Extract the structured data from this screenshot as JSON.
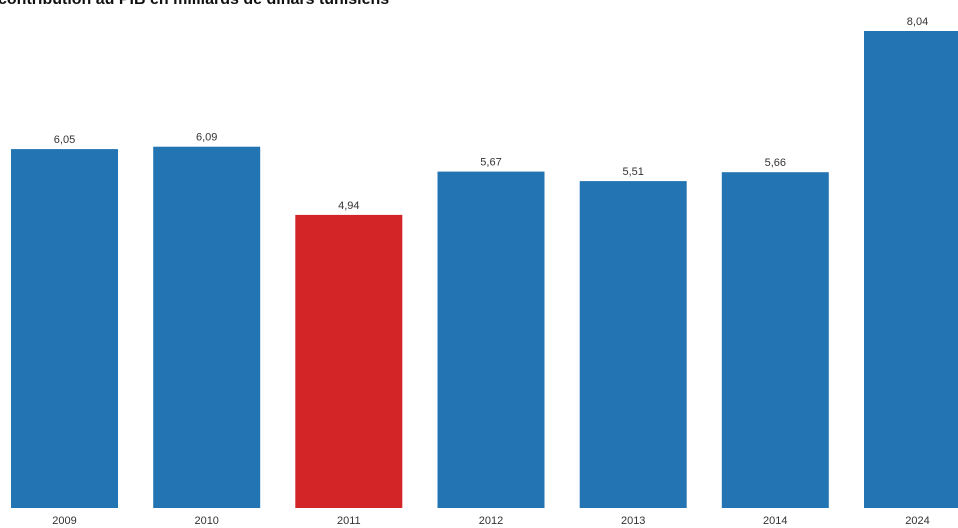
{
  "chart_data": {
    "type": "bar",
    "title": "contribution au PIB en milliards de dinars tunisiens",
    "categories": [
      "2009",
      "2010",
      "2011",
      "2012",
      "2013",
      "2014",
      "2024"
    ],
    "values": [
      6.05,
      6.09,
      4.94,
      5.67,
      5.51,
      5.66,
      8.04
    ],
    "value_labels": [
      "6,05",
      "6,09",
      "4,94",
      "5,67",
      "5,51",
      "5,66",
      "8,04"
    ],
    "highlight_category": "2011",
    "colors": {
      "default": "#2274b2",
      "highlight": "#d32527"
    },
    "ylim": [
      0,
      8.04
    ],
    "xlabel": "",
    "ylabel": "",
    "grid": false,
    "legend": "none"
  }
}
